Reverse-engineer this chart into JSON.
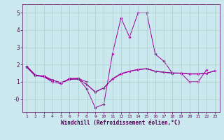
{
  "xlabel": "Windchill (Refroidissement éolien,°C)",
  "background_color": "#cce8ef",
  "grid_color": "#aacccc",
  "line_color": "#990099",
  "hours": [
    1,
    2,
    3,
    4,
    5,
    6,
    7,
    8,
    9,
    10,
    11,
    12,
    13,
    14,
    15,
    16,
    17,
    18,
    19,
    20,
    21,
    22,
    23
  ],
  "series_main": [
    1.9,
    1.4,
    1.3,
    1.0,
    0.9,
    1.2,
    1.2,
    0.6,
    -0.5,
    -0.3,
    2.6,
    4.7,
    3.6,
    5.0,
    5.0,
    2.6,
    2.2,
    1.5,
    1.5,
    1.0,
    1.0,
    1.7,
    null
  ],
  "series_a": [
    1.85,
    1.35,
    1.35,
    1.1,
    0.95,
    1.15,
    1.15,
    0.85,
    0.4,
    0.65,
    1.15,
    1.45,
    1.6,
    1.7,
    1.75,
    1.6,
    1.55,
    1.5,
    1.5,
    1.45,
    1.45,
    1.5,
    1.65
  ],
  "series_b": [
    1.85,
    1.35,
    1.3,
    1.1,
    0.95,
    1.15,
    1.17,
    0.85,
    0.42,
    0.65,
    1.18,
    1.48,
    1.62,
    1.72,
    1.77,
    1.62,
    1.56,
    1.52,
    1.51,
    1.47,
    1.47,
    1.5,
    1.63
  ],
  "series_short": [
    1.9,
    1.4,
    1.3,
    1.0,
    0.9,
    1.15,
    1.2,
    1.0,
    null,
    null,
    null,
    null,
    null,
    null,
    null,
    null,
    null,
    null,
    null,
    null,
    null,
    null,
    null
  ],
  "ylim": [
    -0.75,
    5.5
  ],
  "xlim": [
    0.5,
    23.5
  ],
  "yticks": [
    0,
    1,
    2,
    3,
    4,
    5
  ],
  "ytick_labels": [
    "-0",
    "1",
    "2",
    "3",
    "4",
    "5"
  ],
  "xticks": [
    1,
    2,
    3,
    4,
    5,
    6,
    7,
    8,
    9,
    10,
    11,
    12,
    13,
    14,
    15,
    16,
    17,
    18,
    19,
    20,
    21,
    22,
    23
  ]
}
